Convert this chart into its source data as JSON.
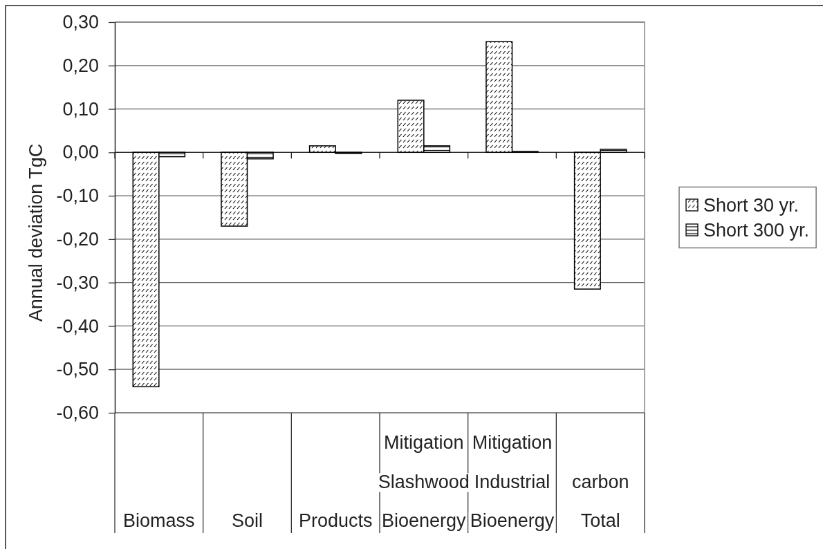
{
  "chart_data": {
    "type": "bar",
    "ylabel": "Annual deviation TgC",
    "categories": [
      "Biomass",
      "Soil",
      "Products",
      "Mitigation\nSlashwood\nBioenergy",
      "Mitigation\nIndustrial\nBioenergy",
      "carbon\nTotal"
    ],
    "series": [
      {
        "name": "Short 30 yr.",
        "color": "#000000",
        "values": [
          -0.54,
          -0.17,
          0.015,
          0.12,
          0.255,
          -0.315
        ]
      },
      {
        "name": "Short 300 yr.",
        "color": "#000000",
        "values": [
          -0.01,
          -0.015,
          -0.003,
          0.015,
          0.002,
          0.007
        ]
      }
    ],
    "ylim": [
      -0.6,
      0.3
    ],
    "yticks": [
      {
        "value": 0.3,
        "label": "0,30"
      },
      {
        "value": 0.2,
        "label": "0,20"
      },
      {
        "value": 0.1,
        "label": "0,10"
      },
      {
        "value": 0,
        "label": "0,00"
      },
      {
        "value": -0.1,
        "label": "-0,10"
      },
      {
        "value": -0.2,
        "label": "-0,20"
      },
      {
        "value": -0.3,
        "label": "-0,30"
      },
      {
        "value": -0.4,
        "label": "-0,40"
      },
      {
        "value": -0.5,
        "label": "-0,50"
      },
      {
        "value": -0.6,
        "label": "-0,60"
      }
    ],
    "grid": "y",
    "legend": "right"
  }
}
